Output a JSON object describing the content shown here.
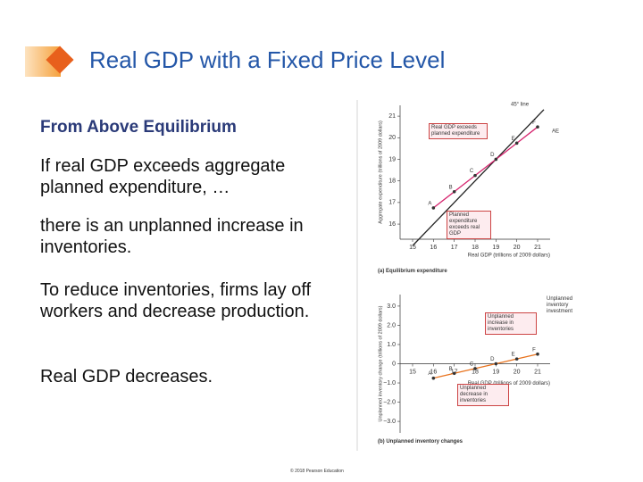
{
  "slide": {
    "title": "Real GDP with a Fixed Price Level",
    "heading": "From Above Equilibrium",
    "paragraphs": [
      "If real GDP exceeds  aggregate planned expenditure, …",
      "there is an unplanned increase in inventories.",
      "To reduce inventories, firms lay off workers and decrease production.",
      "Real GDP decreases."
    ],
    "footer": "© 2018 Pearson Education"
  },
  "chart_data": [
    {
      "type": "line",
      "caption": "(a) Equilibrium expenditure",
      "x_label": "Real GDP (trillions of 2009 dollars)",
      "y_label": "Aggregate expenditure (trillions of 2009 dollars)",
      "xlim": [
        14.4,
        21.6
      ],
      "ylim": [
        15.3,
        21.5
      ],
      "xticks": [
        15,
        16,
        17,
        18,
        19,
        20,
        21
      ],
      "yticks": [
        16,
        17,
        18,
        19,
        20,
        21
      ],
      "series": [
        {
          "name": "45° line",
          "color": "#222222",
          "x": [
            15,
            21.3
          ],
          "values": [
            15,
            21.3
          ]
        },
        {
          "name": "AE",
          "color": "#d6246e",
          "x": [
            16,
            17,
            18,
            19,
            20,
            21
          ],
          "values": [
            16.75,
            17.5,
            18.25,
            19,
            19.75,
            20.5
          ],
          "labels": [
            "A",
            "B",
            "C",
            "D",
            "E",
            "F"
          ]
        }
      ],
      "annotations": [
        "Real GDP exceeds planned expenditure",
        "Planned expenditure exceeds real GDP"
      ]
    },
    {
      "type": "line",
      "caption": "(b) Unplanned inventory changes",
      "x_label": "Real GDP (trillions of 2009 dollars)",
      "y_label": "Unplanned inventory change (trillions of 2009 dollars)",
      "xlim": [
        14.4,
        21.6
      ],
      "ylim": [
        -3.6,
        3.6
      ],
      "xticks": [
        15,
        16,
        17,
        18,
        19,
        20,
        21
      ],
      "yticks": [
        {
          "value": 3,
          "label": "3.0"
        },
        {
          "value": 2,
          "label": "2.0"
        },
        {
          "value": 1,
          "label": "1.0"
        },
        0,
        {
          "value": -1,
          "label": "−1.0"
        },
        {
          "value": -2,
          "label": "−2.0"
        },
        {
          "value": -3,
          "label": "−3.0"
        }
      ],
      "series": [
        {
          "color": "#e8731e",
          "x": [
            16,
            17,
            18,
            19,
            20,
            21
          ],
          "values": [
            -0.75,
            -0.5,
            -0.25,
            0,
            0.25,
            0.5
          ],
          "labels": [
            "A",
            "B",
            "C",
            "D",
            "E",
            "F"
          ]
        }
      ],
      "annotations": [
        "Unplanned inventory investment",
        "Unplanned increase in inventories",
        "Unplanned decrease in inventories"
      ]
    }
  ]
}
